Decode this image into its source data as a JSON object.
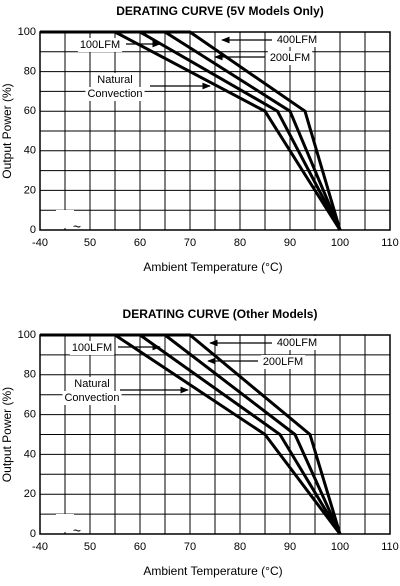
{
  "chart_data": [
    {
      "type": "line",
      "title": "DERATING CURVE (5V Models Only)",
      "x_label": "Ambient Temperature (°C)",
      "y_label": "Output Power (%)",
      "xlim": [
        -40,
        110
      ],
      "xticks": [
        -40,
        50,
        60,
        70,
        80,
        90,
        100,
        110
      ],
      "ylim": [
        0,
        100
      ],
      "yticks": [
        0,
        20,
        40,
        60,
        80,
        100
      ],
      "x_break": true,
      "x_break_label": "~",
      "grid": true,
      "series": [
        {
          "color": "#000000",
          "x": [
            -40,
            55,
            85,
            100
          ],
          "values": [
            100,
            100,
            60,
            0
          ]
        },
        {
          "color": "#000000",
          "x": [
            -40,
            60,
            87.5,
            100
          ],
          "values": [
            100,
            100,
            60,
            0
          ]
        },
        {
          "color": "#000000",
          "x": [
            -40,
            65,
            90,
            100
          ],
          "values": [
            100,
            100,
            60,
            0
          ]
        },
        {
          "color": "#000000",
          "x": [
            -40,
            70,
            93,
            100
          ],
          "values": [
            100,
            100,
            60,
            0
          ]
        }
      ],
      "annotations": [
        {
          "lines": [
            "Natural",
            "Convection"
          ]
        },
        {
          "lines": [
            "100LFM"
          ]
        },
        {
          "lines": [
            "200LFM"
          ]
        },
        {
          "lines": [
            "400LFM"
          ]
        }
      ]
    },
    {
      "type": "line",
      "title": "DERATING CURVE (Other Models)",
      "x_label": "Ambient Temperature (°C)",
      "y_label": "Output Power (%)",
      "xlim": [
        -40,
        110
      ],
      "xticks": [
        -40,
        50,
        60,
        70,
        80,
        90,
        100,
        110
      ],
      "ylim": [
        0,
        100
      ],
      "yticks": [
        0,
        20,
        40,
        60,
        80,
        100
      ],
      "x_break": true,
      "x_break_label": "~",
      "grid": true,
      "series": [
        {
          "color": "#000000",
          "x": [
            -40,
            55,
            85,
            100
          ],
          "values": [
            100,
            100,
            50,
            0
          ]
        },
        {
          "color": "#000000",
          "x": [
            -40,
            60,
            88,
            100
          ],
          "values": [
            100,
            100,
            50,
            0
          ]
        },
        {
          "color": "#000000",
          "x": [
            -40,
            65,
            91,
            100
          ],
          "values": [
            100,
            100,
            50,
            0
          ]
        },
        {
          "color": "#000000",
          "x": [
            -40,
            70,
            94,
            100
          ],
          "values": [
            100,
            100,
            50,
            0
          ]
        }
      ],
      "annotations": [
        {
          "lines": [
            "Natural",
            "Convection"
          ]
        },
        {
          "lines": [
            "100LFM"
          ]
        },
        {
          "lines": [
            "200LFM"
          ]
        },
        {
          "lines": [
            "400LFM"
          ]
        }
      ]
    }
  ]
}
